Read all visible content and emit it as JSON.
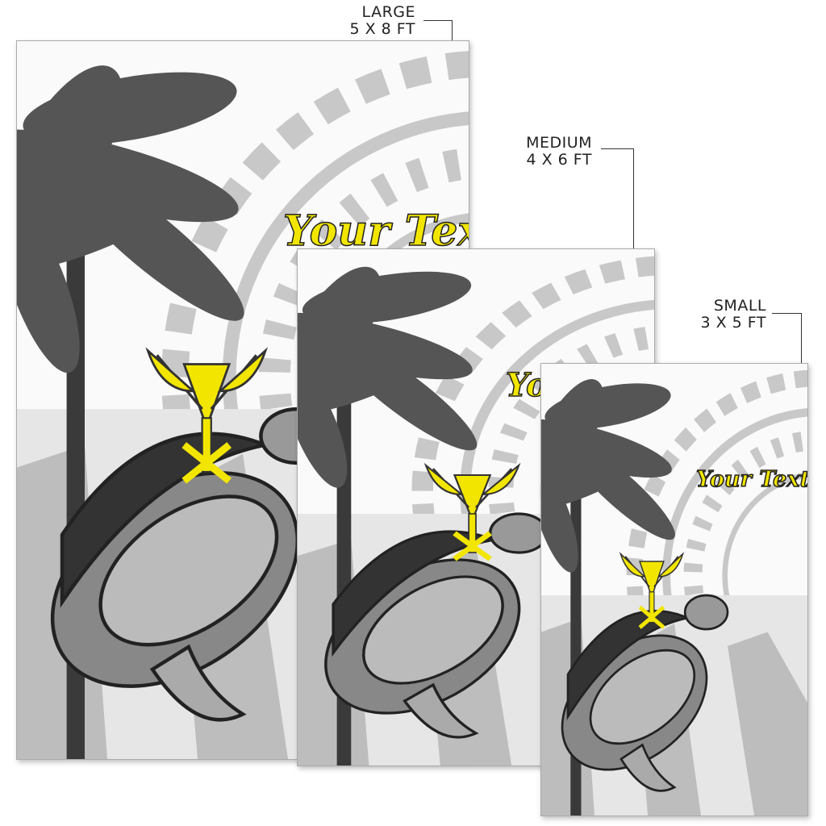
{
  "sizes": [
    {
      "name": "LARGE",
      "dimensions": "5 X 8  FT"
    },
    {
      "name": "MEDIUM",
      "dimensions": "4 X 6  FT"
    },
    {
      "name": "SMALL",
      "dimensions": "3 X 5  FT"
    }
  ],
  "rug_text": "Your Text",
  "colors": {
    "accent_yellow": "#f2e600",
    "pattern_grey": "#c8c8c8",
    "palm_dark": "#4a4a4a"
  },
  "icons": [
    "kakau-emblem-icon",
    "palm-tree-icon",
    "sea-turtle-icon"
  ]
}
